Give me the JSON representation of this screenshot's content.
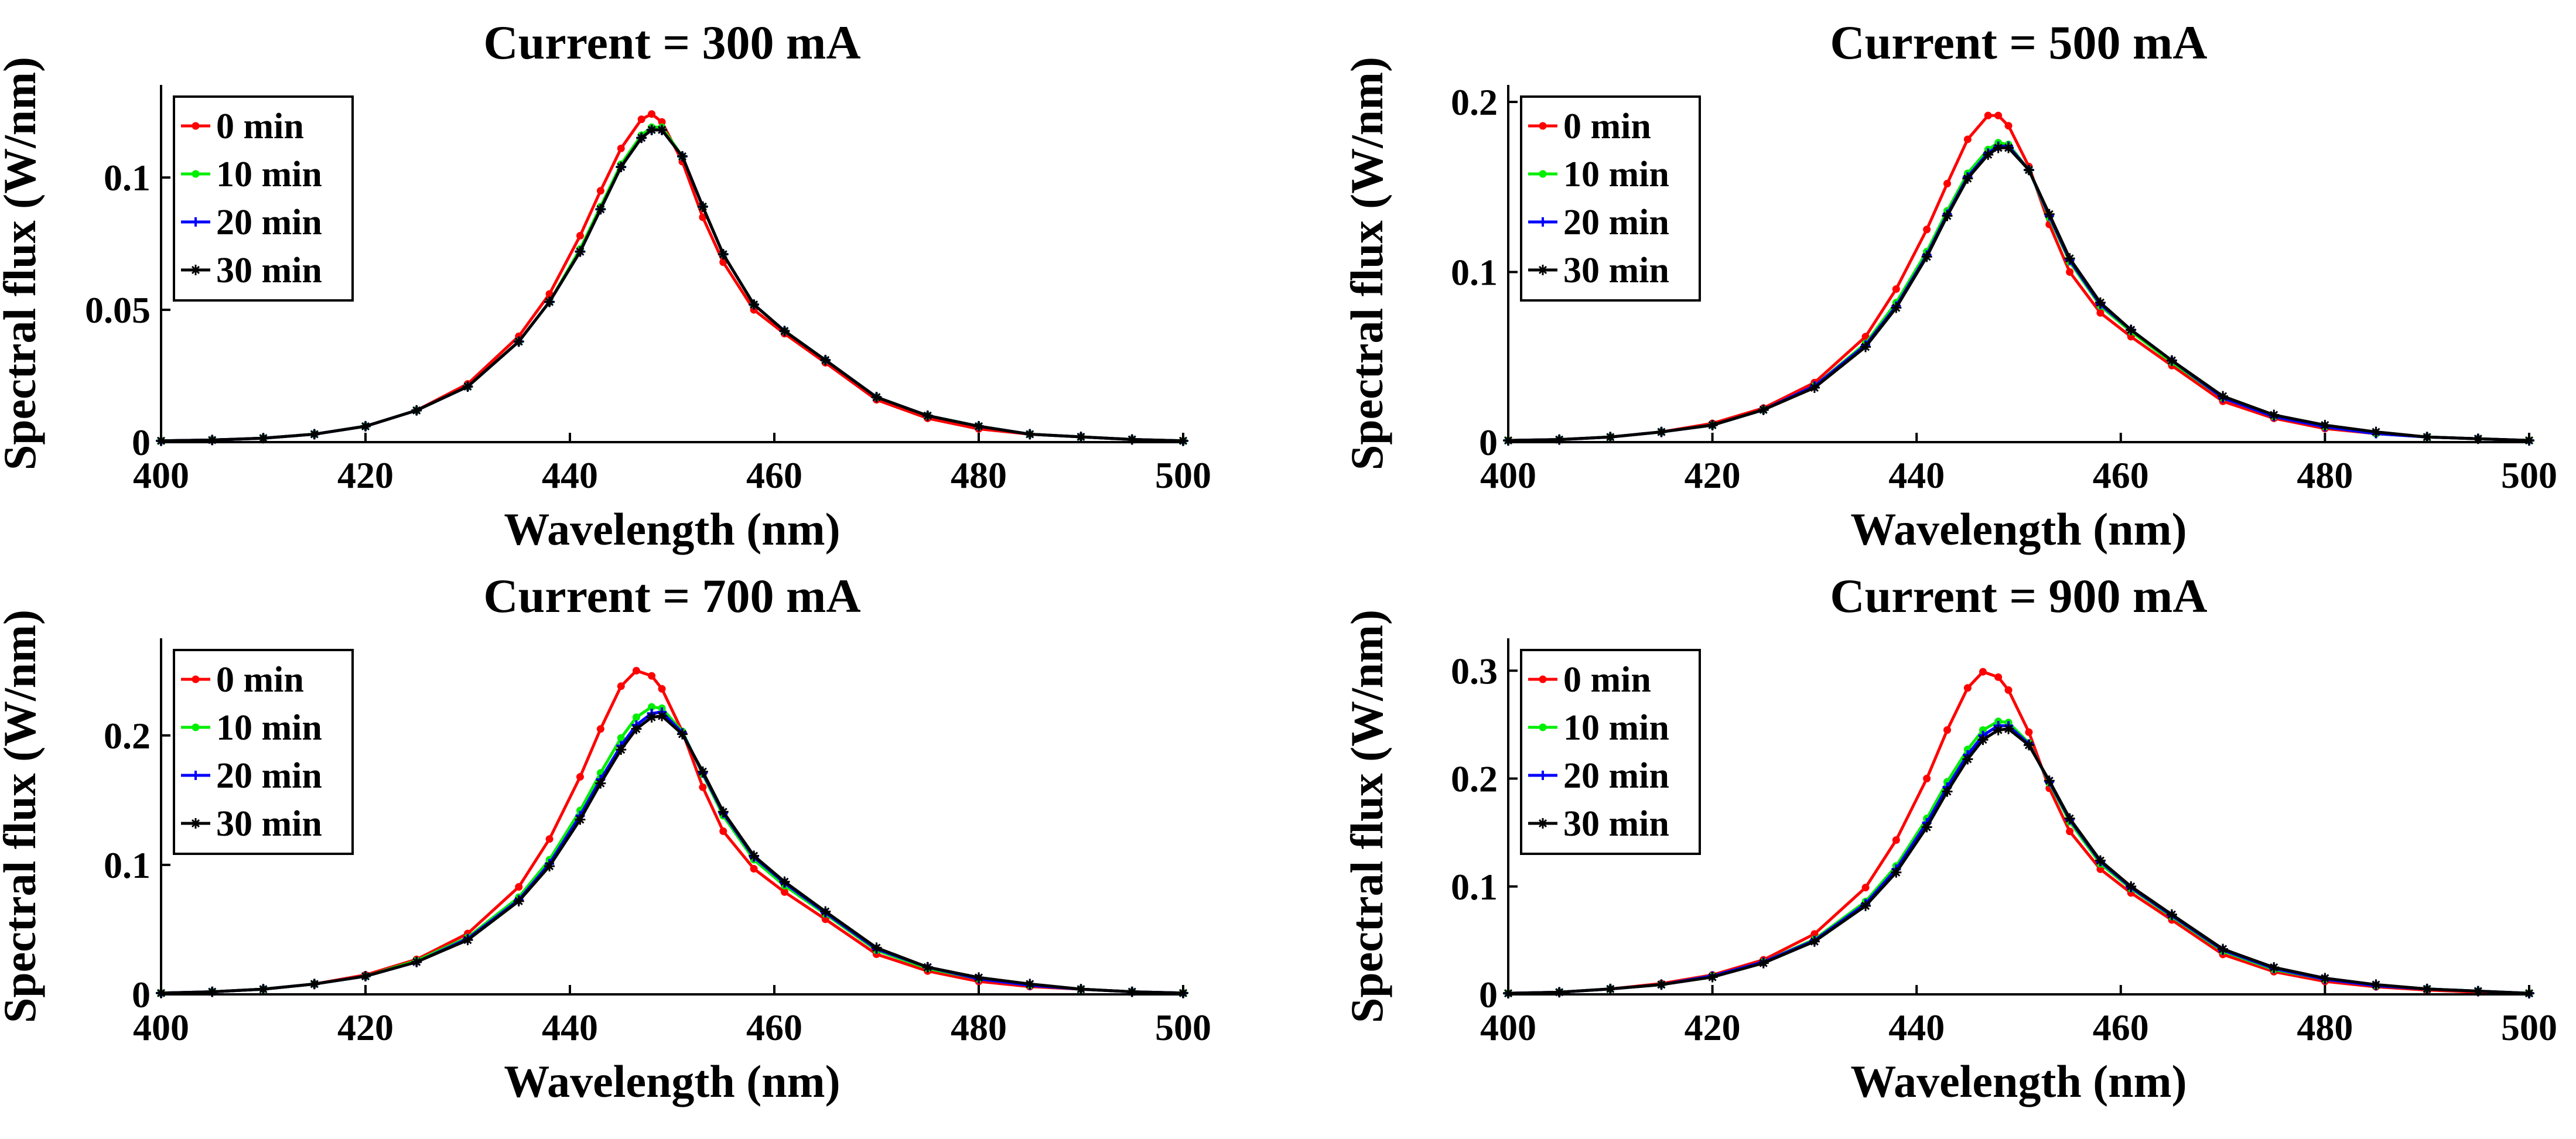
{
  "figure": {
    "background": "#ffffff"
  },
  "chart_data": [
    {
      "type": "line",
      "title": "Current = 300 mA",
      "xlabel": "Wavelength (nm)",
      "ylabel": "Spectral flux (W/nm)",
      "xlim": [
        400,
        500
      ],
      "ylim": [
        0,
        0.135
      ],
      "xticks": [
        400,
        420,
        440,
        460,
        480,
        500
      ],
      "xtick_labels": [
        "400",
        "420",
        "440",
        "460",
        "480",
        "500"
      ],
      "yticks": [
        0,
        0.05,
        0.1
      ],
      "ytick_labels": [
        "0",
        "0.05",
        "0.1"
      ],
      "grid": false,
      "legend": "top-left",
      "x": [
        400,
        405,
        410,
        415,
        420,
        425,
        430,
        435,
        438,
        441,
        443,
        445,
        447,
        448,
        449,
        451,
        453,
        455,
        458,
        461,
        465,
        470,
        475,
        480,
        485,
        490,
        495,
        500
      ],
      "series": [
        {
          "name": "0 min",
          "color": "#ff0000",
          "marker": "circle",
          "values": [
            0.0005,
            0.0008,
            0.0015,
            0.003,
            0.006,
            0.012,
            0.022,
            0.04,
            0.056,
            0.078,
            0.095,
            0.111,
            0.122,
            0.124,
            0.121,
            0.106,
            0.085,
            0.068,
            0.05,
            0.041,
            0.03,
            0.016,
            0.009,
            0.005,
            0.003,
            0.002,
            0.001,
            0.0005
          ]
        },
        {
          "name": "10 min",
          "color": "#00ee00",
          "marker": "circle",
          "values": [
            0.0005,
            0.0008,
            0.0015,
            0.003,
            0.006,
            0.012,
            0.021,
            0.038,
            0.053,
            0.073,
            0.089,
            0.105,
            0.116,
            0.119,
            0.119,
            0.108,
            0.089,
            0.071,
            0.052,
            0.042,
            0.031,
            0.017,
            0.01,
            0.006,
            0.003,
            0.002,
            0.001,
            0.0005
          ]
        },
        {
          "name": "20 min",
          "color": "#0000ff",
          "marker": "plus",
          "values": [
            0.0005,
            0.0008,
            0.0015,
            0.003,
            0.006,
            0.012,
            0.021,
            0.038,
            0.053,
            0.072,
            0.088,
            0.104,
            0.115,
            0.118,
            0.118,
            0.108,
            0.089,
            0.071,
            0.052,
            0.042,
            0.031,
            0.017,
            0.01,
            0.006,
            0.003,
            0.002,
            0.001,
            0.0005
          ]
        },
        {
          "name": "30 min",
          "color": "#000000",
          "marker": "star",
          "values": [
            0.0005,
            0.0008,
            0.0015,
            0.003,
            0.006,
            0.012,
            0.021,
            0.038,
            0.053,
            0.072,
            0.088,
            0.104,
            0.115,
            0.118,
            0.118,
            0.108,
            0.089,
            0.071,
            0.052,
            0.042,
            0.031,
            0.017,
            0.01,
            0.006,
            0.003,
            0.002,
            0.001,
            0.0005
          ]
        }
      ]
    },
    {
      "type": "line",
      "title": "Current = 500 mA",
      "xlabel": "Wavelength (nm)",
      "ylabel": "Spectral flux (W/nm)",
      "xlim": [
        400,
        500
      ],
      "ylim": [
        0,
        0.21
      ],
      "xticks": [
        400,
        420,
        440,
        460,
        480,
        500
      ],
      "xtick_labels": [
        "400",
        "420",
        "440",
        "460",
        "480",
        "500"
      ],
      "yticks": [
        0,
        0.1,
        0.2
      ],
      "ytick_labels": [
        "0",
        "0.1",
        "0.2"
      ],
      "grid": false,
      "legend": "top-left",
      "x": [
        400,
        405,
        410,
        415,
        420,
        425,
        430,
        435,
        438,
        441,
        443,
        445,
        447,
        448,
        449,
        451,
        453,
        455,
        458,
        461,
        465,
        470,
        475,
        480,
        485,
        490,
        495,
        500
      ],
      "series": [
        {
          "name": "0 min",
          "color": "#ff0000",
          "marker": "circle",
          "values": [
            0.001,
            0.0015,
            0.003,
            0.006,
            0.011,
            0.02,
            0.035,
            0.062,
            0.09,
            0.125,
            0.152,
            0.178,
            0.192,
            0.192,
            0.186,
            0.162,
            0.128,
            0.1,
            0.076,
            0.062,
            0.045,
            0.024,
            0.014,
            0.008,
            0.005,
            0.003,
            0.002,
            0.001
          ]
        },
        {
          "name": "10 min",
          "color": "#00ee00",
          "marker": "circle",
          "values": [
            0.001,
            0.0015,
            0.003,
            0.006,
            0.01,
            0.019,
            0.033,
            0.058,
            0.082,
            0.112,
            0.136,
            0.158,
            0.172,
            0.176,
            0.175,
            0.16,
            0.132,
            0.106,
            0.08,
            0.065,
            0.047,
            0.026,
            0.015,
            0.009,
            0.005,
            0.003,
            0.002,
            0.001
          ]
        },
        {
          "name": "20 min",
          "color": "#0000ff",
          "marker": "plus",
          "values": [
            0.001,
            0.0015,
            0.003,
            0.006,
            0.01,
            0.019,
            0.033,
            0.057,
            0.08,
            0.11,
            0.134,
            0.156,
            0.17,
            0.174,
            0.174,
            0.16,
            0.133,
            0.107,
            0.081,
            0.066,
            0.048,
            0.026,
            0.015,
            0.009,
            0.005,
            0.003,
            0.002,
            0.001
          ]
        },
        {
          "name": "30 min",
          "color": "#000000",
          "marker": "star",
          "values": [
            0.001,
            0.0015,
            0.003,
            0.006,
            0.01,
            0.019,
            0.032,
            0.056,
            0.079,
            0.109,
            0.133,
            0.155,
            0.169,
            0.173,
            0.173,
            0.16,
            0.134,
            0.108,
            0.082,
            0.066,
            0.048,
            0.027,
            0.016,
            0.01,
            0.006,
            0.003,
            0.002,
            0.001
          ]
        }
      ]
    },
    {
      "type": "line",
      "title": "Current = 700 mA",
      "xlabel": "Wavelength (nm)",
      "ylabel": "Spectral flux (W/nm)",
      "xlim": [
        400,
        500
      ],
      "ylim": [
        0,
        0.275
      ],
      "xticks": [
        400,
        420,
        440,
        460,
        480,
        500
      ],
      "xtick_labels": [
        "400",
        "420",
        "440",
        "460",
        "480",
        "500"
      ],
      "yticks": [
        0,
        0.1,
        0.2
      ],
      "ytick_labels": [
        "0",
        "0.1",
        "0.2"
      ],
      "grid": false,
      "legend": "top-left",
      "x": [
        400,
        405,
        410,
        415,
        420,
        425,
        430,
        435,
        438,
        441,
        443,
        445,
        446.5,
        448,
        449,
        451,
        453,
        455,
        458,
        461,
        465,
        470,
        475,
        480,
        485,
        490,
        495,
        500
      ],
      "series": [
        {
          "name": "0 min",
          "color": "#ff0000",
          "marker": "circle",
          "values": [
            0.001,
            0.002,
            0.004,
            0.008,
            0.015,
            0.027,
            0.047,
            0.083,
            0.12,
            0.168,
            0.205,
            0.238,
            0.25,
            0.246,
            0.236,
            0.203,
            0.16,
            0.126,
            0.097,
            0.079,
            0.058,
            0.031,
            0.018,
            0.01,
            0.006,
            0.004,
            0.002,
            0.001
          ]
        },
        {
          "name": "10 min",
          "color": "#00ee00",
          "marker": "circle",
          "values": [
            0.001,
            0.002,
            0.004,
            0.008,
            0.014,
            0.026,
            0.044,
            0.075,
            0.104,
            0.142,
            0.171,
            0.198,
            0.214,
            0.222,
            0.221,
            0.203,
            0.17,
            0.138,
            0.104,
            0.084,
            0.062,
            0.034,
            0.02,
            0.012,
            0.007,
            0.004,
            0.002,
            0.001
          ]
        },
        {
          "name": "20 min",
          "color": "#0000ff",
          "marker": "plus",
          "values": [
            0.001,
            0.002,
            0.004,
            0.008,
            0.014,
            0.025,
            0.043,
            0.073,
            0.101,
            0.138,
            0.166,
            0.192,
            0.208,
            0.217,
            0.218,
            0.202,
            0.171,
            0.14,
            0.106,
            0.086,
            0.063,
            0.035,
            0.021,
            0.012,
            0.007,
            0.004,
            0.002,
            0.001
          ]
        },
        {
          "name": "30 min",
          "color": "#000000",
          "marker": "star",
          "values": [
            0.001,
            0.002,
            0.004,
            0.008,
            0.014,
            0.025,
            0.042,
            0.072,
            0.099,
            0.135,
            0.163,
            0.189,
            0.205,
            0.214,
            0.215,
            0.201,
            0.172,
            0.141,
            0.107,
            0.087,
            0.064,
            0.036,
            0.021,
            0.013,
            0.008,
            0.004,
            0.002,
            0.001
          ]
        }
      ]
    },
    {
      "type": "line",
      "title": "Current = 900 mA",
      "xlabel": "Wavelength (nm)",
      "ylabel": "Spectral flux (W/nm)",
      "xlim": [
        400,
        500
      ],
      "ylim": [
        0,
        0.33
      ],
      "xticks": [
        400,
        420,
        440,
        460,
        480,
        500
      ],
      "xtick_labels": [
        "400",
        "420",
        "440",
        "460",
        "480",
        "500"
      ],
      "yticks": [
        0,
        0.1,
        0.2,
        0.3
      ],
      "ytick_labels": [
        "0",
        "0.1",
        "0.2",
        "0.3"
      ],
      "grid": false,
      "legend": "top-left",
      "x": [
        400,
        405,
        410,
        415,
        420,
        425,
        430,
        435,
        438,
        441,
        443,
        445,
        446.5,
        448,
        449,
        451,
        453,
        455,
        458,
        461,
        465,
        470,
        475,
        480,
        485,
        490,
        495,
        500
      ],
      "series": [
        {
          "name": "0 min",
          "color": "#ff0000",
          "marker": "circle",
          "values": [
            0.001,
            0.002,
            0.005,
            0.01,
            0.018,
            0.032,
            0.056,
            0.099,
            0.143,
            0.2,
            0.245,
            0.284,
            0.299,
            0.294,
            0.282,
            0.243,
            0.191,
            0.151,
            0.116,
            0.094,
            0.069,
            0.037,
            0.021,
            0.012,
            0.007,
            0.004,
            0.002,
            0.001
          ]
        },
        {
          "name": "10 min",
          "color": "#00ee00",
          "marker": "circle",
          "values": [
            0.001,
            0.002,
            0.005,
            0.009,
            0.017,
            0.03,
            0.051,
            0.086,
            0.119,
            0.163,
            0.197,
            0.227,
            0.245,
            0.253,
            0.252,
            0.233,
            0.196,
            0.16,
            0.121,
            0.098,
            0.072,
            0.04,
            0.023,
            0.014,
            0.008,
            0.005,
            0.003,
            0.001
          ]
        },
        {
          "name": "20 min",
          "color": "#0000ff",
          "marker": "plus",
          "values": [
            0.001,
            0.002,
            0.005,
            0.009,
            0.017,
            0.03,
            0.05,
            0.084,
            0.116,
            0.159,
            0.192,
            0.222,
            0.24,
            0.249,
            0.249,
            0.232,
            0.197,
            0.162,
            0.123,
            0.099,
            0.073,
            0.041,
            0.024,
            0.014,
            0.008,
            0.005,
            0.003,
            0.001
          ]
        },
        {
          "name": "30 min",
          "color": "#000000",
          "marker": "star",
          "values": [
            0.001,
            0.002,
            0.005,
            0.009,
            0.016,
            0.029,
            0.049,
            0.082,
            0.113,
            0.155,
            0.188,
            0.218,
            0.236,
            0.245,
            0.246,
            0.231,
            0.198,
            0.163,
            0.124,
            0.1,
            0.074,
            0.042,
            0.025,
            0.015,
            0.009,
            0.005,
            0.003,
            0.001
          ]
        }
      ]
    }
  ]
}
